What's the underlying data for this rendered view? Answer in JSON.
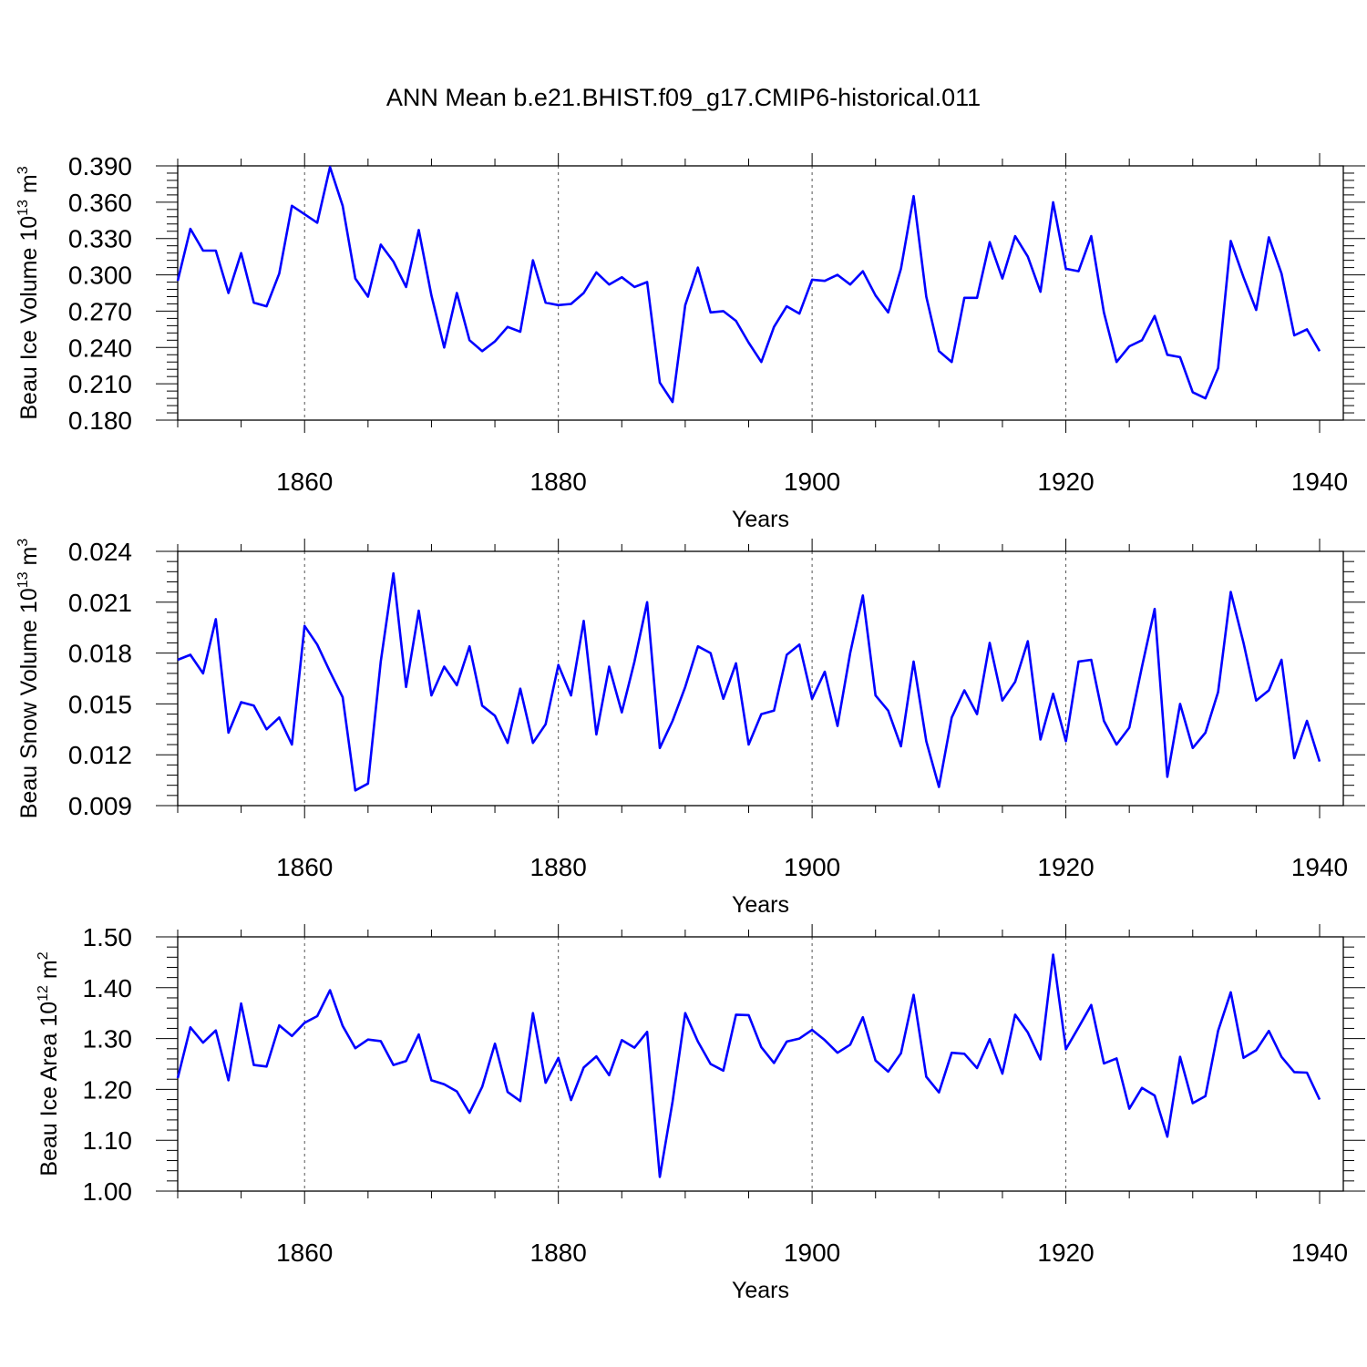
{
  "title": "ANN Mean b.e21.BHIST.f09_g17.CMIP6-historical.011",
  "colors": {
    "line": "#0000ff",
    "axis": "#000000",
    "grid": "#555555"
  },
  "chart_data": [
    {
      "type": "line",
      "xlabel": "Years",
      "ylabel": "Beau Ice Volume 10",
      "ylabel_exp": "13",
      "ylabel_unit": "m",
      "ylabel_unit_exp": "3",
      "xlim": [
        1850,
        1940
      ],
      "ylim": [
        0.18,
        0.39
      ],
      "xticks": [
        "1860",
        "1880",
        "1900",
        "1920",
        "1940"
      ],
      "yticks": [
        "0.180",
        "0.210",
        "0.240",
        "0.270",
        "0.300",
        "0.330",
        "0.360",
        "0.390"
      ],
      "grid": "vertical dashed at 1860, 1880, 1900, 1920",
      "x_start": 1850,
      "series": [
        {
          "values": [
            0.295,
            0.338,
            0.32,
            0.32,
            0.285,
            0.318,
            0.277,
            0.274,
            0.301,
            0.357,
            0.35,
            0.343,
            0.389,
            0.357,
            0.297,
            0.282,
            0.325,
            0.311,
            0.29,
            0.337,
            0.283,
            0.24,
            0.285,
            0.246,
            0.237,
            0.245,
            0.257,
            0.253,
            0.312,
            0.277,
            0.275,
            0.276,
            0.285,
            0.302,
            0.292,
            0.298,
            0.29,
            0.294,
            0.211,
            0.195,
            0.275,
            0.306,
            0.269,
            0.27,
            0.262,
            0.244,
            0.228,
            0.257,
            0.274,
            0.268,
            0.296,
            0.295,
            0.3,
            0.292,
            0.303,
            0.283,
            0.269,
            0.305,
            0.365,
            0.282,
            0.237,
            0.228,
            0.281,
            0.281,
            0.327,
            0.297,
            0.332,
            0.315,
            0.286,
            0.36,
            0.305,
            0.303,
            0.332,
            0.269,
            0.228,
            0.241,
            0.246,
            0.266,
            0.234,
            0.232,
            0.203,
            0.198,
            0.223,
            0.328,
            0.298,
            0.271,
            0.331,
            0.301,
            0.25,
            0.255,
            0.237
          ]
        }
      ]
    },
    {
      "type": "line",
      "xlabel": "Years",
      "ylabel": "Beau Snow Volume 10",
      "ylabel_exp": "13",
      "ylabel_unit": "m",
      "ylabel_unit_exp": "3",
      "xlim": [
        1850,
        1940
      ],
      "ylim": [
        0.009,
        0.024
      ],
      "xticks": [
        "1860",
        "1880",
        "1900",
        "1920",
        "1940"
      ],
      "yticks": [
        "0.009",
        "0.012",
        "0.015",
        "0.018",
        "0.021",
        "0.024"
      ],
      "grid": "vertical dashed at 1860, 1880, 1900, 1920",
      "x_start": 1850,
      "series": [
        {
          "values": [
            0.0176,
            0.0179,
            0.0168,
            0.02,
            0.0133,
            0.0151,
            0.0149,
            0.0135,
            0.0142,
            0.0126,
            0.0196,
            0.0185,
            0.0169,
            0.0154,
            0.0099,
            0.0103,
            0.0175,
            0.0227,
            0.016,
            0.0205,
            0.0155,
            0.0172,
            0.0161,
            0.0184,
            0.0149,
            0.0143,
            0.0127,
            0.0159,
            0.0127,
            0.0138,
            0.0173,
            0.0155,
            0.0199,
            0.0132,
            0.0172,
            0.0145,
            0.0175,
            0.021,
            0.0124,
            0.014,
            0.016,
            0.0184,
            0.018,
            0.0153,
            0.0174,
            0.0126,
            0.0144,
            0.0146,
            0.0179,
            0.0185,
            0.0153,
            0.0169,
            0.0137,
            0.018,
            0.0214,
            0.0155,
            0.0146,
            0.0125,
            0.0175,
            0.0128,
            0.0101,
            0.0142,
            0.0158,
            0.0144,
            0.0186,
            0.0152,
            0.0163,
            0.0187,
            0.0129,
            0.0156,
            0.0128,
            0.0175,
            0.0176,
            0.014,
            0.0126,
            0.0136,
            0.0172,
            0.0206,
            0.0107,
            0.015,
            0.0124,
            0.0133,
            0.0157,
            0.0216,
            0.0186,
            0.0152,
            0.0158,
            0.0176,
            0.0118,
            0.014,
            0.0116
          ]
        }
      ]
    },
    {
      "type": "line",
      "xlabel": "Years",
      "ylabel": "Beau Ice Area 10",
      "ylabel_exp": "12",
      "ylabel_unit": "m",
      "ylabel_unit_exp": "2",
      "xlim": [
        1850,
        1940
      ],
      "ylim": [
        1.0,
        1.5
      ],
      "xticks": [
        "1860",
        "1880",
        "1900",
        "1920",
        "1940"
      ],
      "yticks": [
        "1.00",
        "1.10",
        "1.20",
        "1.30",
        "1.40",
        "1.50"
      ],
      "grid": "vertical dashed at 1860, 1880, 1900, 1920",
      "x_start": 1850,
      "series": [
        {
          "values": [
            1.222,
            1.322,
            1.292,
            1.316,
            1.218,
            1.369,
            1.248,
            1.245,
            1.326,
            1.305,
            1.331,
            1.344,
            1.395,
            1.325,
            1.281,
            1.298,
            1.295,
            1.248,
            1.256,
            1.308,
            1.218,
            1.21,
            1.196,
            1.154,
            1.205,
            1.29,
            1.195,
            1.177,
            1.35,
            1.213,
            1.262,
            1.179,
            1.243,
            1.265,
            1.228,
            1.297,
            1.282,
            1.313,
            1.028,
            1.176,
            1.35,
            1.294,
            1.25,
            1.237,
            1.347,
            1.346,
            1.283,
            1.252,
            1.294,
            1.3,
            1.317,
            1.297,
            1.272,
            1.288,
            1.342,
            1.257,
            1.235,
            1.271,
            1.386,
            1.225,
            1.194,
            1.272,
            1.27,
            1.242,
            1.299,
            1.231,
            1.347,
            1.312,
            1.259,
            1.465,
            1.279,
            1.322,
            1.366,
            1.251,
            1.261,
            1.162,
            1.203,
            1.188,
            1.107,
            1.264,
            1.173,
            1.187,
            1.315,
            1.391,
            1.262,
            1.277,
            1.315,
            1.264,
            1.234,
            1.233,
            1.18
          ]
        }
      ]
    }
  ]
}
